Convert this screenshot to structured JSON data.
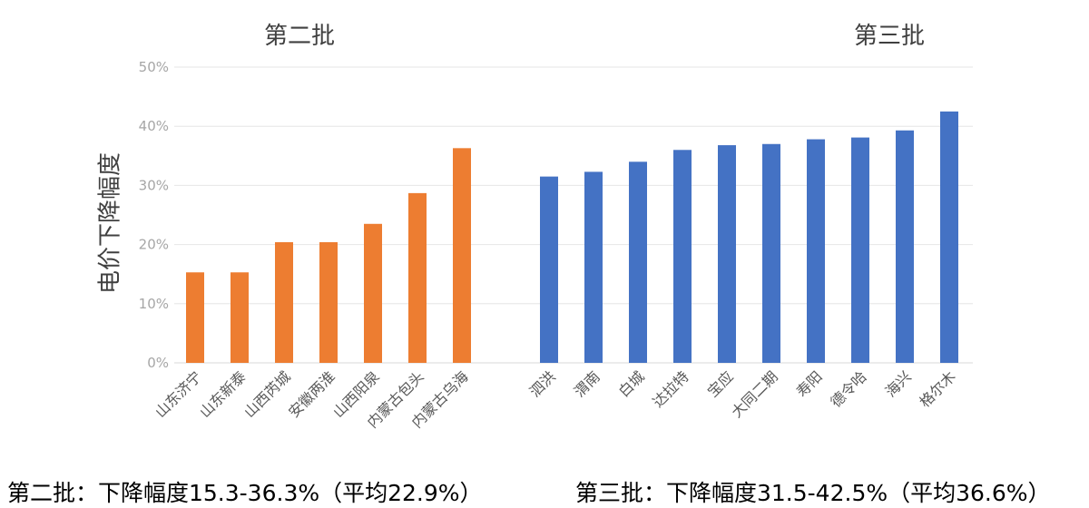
{
  "chart_data": {
    "type": "bar",
    "ylabel": "电价下降幅度",
    "ylim": [
      0,
      50
    ],
    "yticks": [
      "0%",
      "10%",
      "20%",
      "30%",
      "40%",
      "50%"
    ],
    "grid": true,
    "groups": [
      {
        "title": "第二批",
        "color": "#ed7d31",
        "categories": [
          "山东济宁",
          "山东新泰",
          "山西芮城",
          "安徽两淮",
          "山西阳泉",
          "内蒙古包头",
          "内蒙古乌海"
        ],
        "values": [
          15.3,
          15.3,
          20.4,
          20.4,
          23.5,
          28.7,
          36.3
        ]
      },
      {
        "title": "第三批",
        "color": "#4472c4",
        "categories": [
          "泗洪",
          "渭南",
          "白城",
          "达拉特",
          "宝应",
          "大同二期",
          "寿阳",
          "德令哈",
          "海兴",
          "格尔木"
        ],
        "values": [
          31.5,
          32.3,
          34.0,
          36.0,
          36.8,
          37.0,
          37.8,
          38.1,
          39.3,
          42.5
        ]
      }
    ]
  },
  "captions": {
    "left": "第二批：下降幅度15.3-36.3%（平均22.9%）",
    "right": "第三批：下降幅度31.5-42.5%（平均36.6%）"
  }
}
